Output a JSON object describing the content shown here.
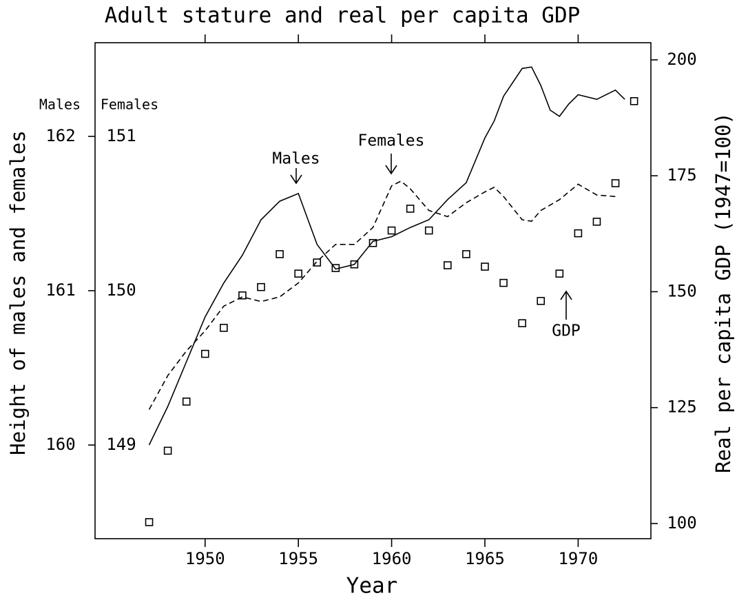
{
  "chart_data": {
    "type": "line",
    "title": "Adult stature and real per capita GDP",
    "x_label": "Year",
    "y_label": "Height of males and females",
    "y2_label": "Real per capita GDP (1947=100)",
    "y_header": "Males",
    "y_females_header": "Females",
    "xlim": [
      1944.1,
      1973.9
    ],
    "xticks": [
      1950,
      1955,
      1960,
      1965,
      1970
    ],
    "ylim": [
      159.393,
      162.607
    ],
    "yticks": [
      160,
      161,
      162
    ],
    "y_females_lim": [
      148.393,
      151.607
    ],
    "y_females_ticks": [
      149,
      150,
      151
    ],
    "y2lim": [
      96.73,
      203.7
    ],
    "y2ticks": [
      100,
      125,
      150,
      175,
      200
    ],
    "annotations": [
      "Males",
      "Females",
      "GDP"
    ],
    "series": [
      {
        "name": "Males",
        "color": "#000000",
        "mark": "line",
        "dash": false,
        "x": [
          1947,
          1948,
          1949,
          1950,
          1951,
          1952,
          1953,
          1954,
          1955,
          1956,
          1957,
          1958,
          1959,
          1960,
          1961,
          1962,
          1963,
          1964,
          1965,
          1965.5,
          1966,
          1967,
          1967.5,
          1968,
          1968.5,
          1969,
          1969.5,
          1970,
          1971,
          1972,
          1972.5
        ],
        "values": [
          160.0,
          160.25,
          160.54,
          160.83,
          161.05,
          161.23,
          161.46,
          161.58,
          161.63,
          161.3,
          161.14,
          161.17,
          161.32,
          161.35,
          161.41,
          161.46,
          161.59,
          161.7,
          161.99,
          162.1,
          162.26,
          162.44,
          162.45,
          162.33,
          162.17,
          162.13,
          162.21,
          162.27,
          162.24,
          162.3,
          162.24
        ]
      },
      {
        "name": "Females",
        "color": "#000000",
        "mark": "line",
        "dash": true,
        "axis": "y_females",
        "x": [
          1947,
          1948,
          1949,
          1950,
          1951,
          1952,
          1953,
          1954,
          1955,
          1956,
          1957,
          1958,
          1959,
          1960,
          1960.5,
          1961,
          1962,
          1963,
          1964,
          1965,
          1965.5,
          1966,
          1967,
          1967.5,
          1968,
          1969,
          1970,
          1971,
          1972
        ],
        "values": [
          149.23,
          149.45,
          149.61,
          149.74,
          149.9,
          149.96,
          149.93,
          149.96,
          150.05,
          150.19,
          150.3,
          150.3,
          150.41,
          150.68,
          150.71,
          150.66,
          150.52,
          150.48,
          150.57,
          150.64,
          150.67,
          150.61,
          150.46,
          150.45,
          150.52,
          150.59,
          150.69,
          150.62,
          150.61
        ]
      },
      {
        "name": "GDP",
        "color": "#000000",
        "mark": "points",
        "axis": "y2",
        "x": [
          1947,
          1948,
          1949,
          1950,
          1951,
          1952,
          1953,
          1954,
          1955,
          1956,
          1957,
          1958,
          1959,
          1960,
          1961,
          1962,
          1963,
          1964,
          1965,
          1966,
          1967,
          1968,
          1969,
          1970,
          1971,
          1972,
          1973
        ],
        "values": [
          100.3,
          115.7,
          126.3,
          136.6,
          142.2,
          149.2,
          151.0,
          158.1,
          153.9,
          156.3,
          155.1,
          155.9,
          160.5,
          163.2,
          167.9,
          163.2,
          155.7,
          158.1,
          155.4,
          151.9,
          143.2,
          148.0,
          153.9,
          162.6,
          165.1,
          173.4,
          191.1
        ]
      }
    ]
  }
}
